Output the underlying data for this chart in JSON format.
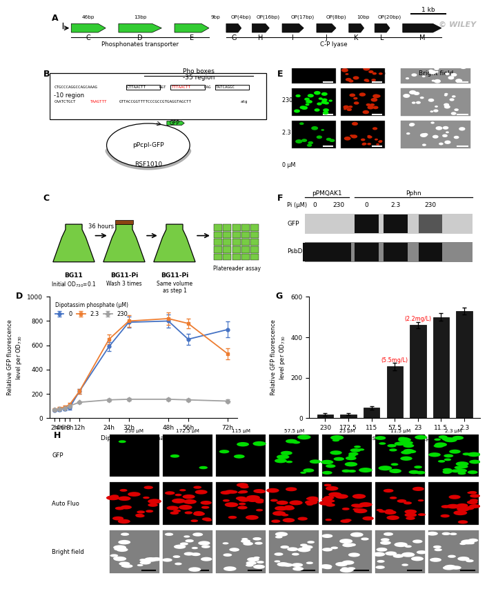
{
  "panel_D": {
    "time_points": [
      2,
      4,
      6,
      8,
      12,
      24,
      32,
      48,
      56,
      72
    ],
    "series_0": [
      65,
      70,
      75,
      85,
      220,
      590,
      790,
      800,
      650,
      730
    ],
    "series_2_3": [
      70,
      80,
      90,
      110,
      220,
      650,
      800,
      820,
      780,
      530
    ],
    "series_230": [
      70,
      75,
      80,
      100,
      130,
      150,
      155,
      155,
      150,
      140
    ],
    "series_0_err": [
      8,
      10,
      10,
      15,
      20,
      35,
      45,
      55,
      45,
      65
    ],
    "series_2_3_err": [
      8,
      10,
      12,
      18,
      20,
      40,
      50,
      50,
      40,
      45
    ],
    "series_230_err": [
      6,
      6,
      8,
      10,
      10,
      12,
      12,
      12,
      10,
      12
    ],
    "colors": [
      "#4472C4",
      "#ED7D31",
      "#A0A0A0"
    ],
    "xlabel": "Dipotassim phosphate (μM)",
    "ylim": [
      0,
      1000
    ],
    "yticks": [
      0,
      200,
      400,
      600,
      800,
      1000
    ],
    "xticks": [
      2,
      4,
      6,
      8,
      12,
      24,
      32,
      48,
      56,
      72
    ],
    "xlabels": [
      "2h",
      "4h",
      "6h",
      "8h",
      "12h",
      "24h",
      "32h",
      "48h",
      "56h",
      "72h"
    ]
  },
  "panel_G": {
    "categories": [
      "230",
      "172.5",
      "115",
      "57.5",
      "23",
      "11.5",
      "2.3"
    ],
    "values": [
      18,
      18,
      50,
      255,
      460,
      500,
      530
    ],
    "errors": [
      8,
      5,
      10,
      20,
      15,
      20,
      18
    ],
    "ann1_x": 3,
    "ann1_y": 270,
    "ann1_text": "(5.5mg/L)",
    "ann2_x": 4,
    "ann2_y": 475,
    "ann2_text": "(2.2mg/L)",
    "xlabel": "Dipotassim phosphate (μM)",
    "ylim": [
      0,
      600
    ],
    "yticks": [
      0,
      200,
      400,
      600
    ],
    "bar_color": "#1a1a1a"
  }
}
